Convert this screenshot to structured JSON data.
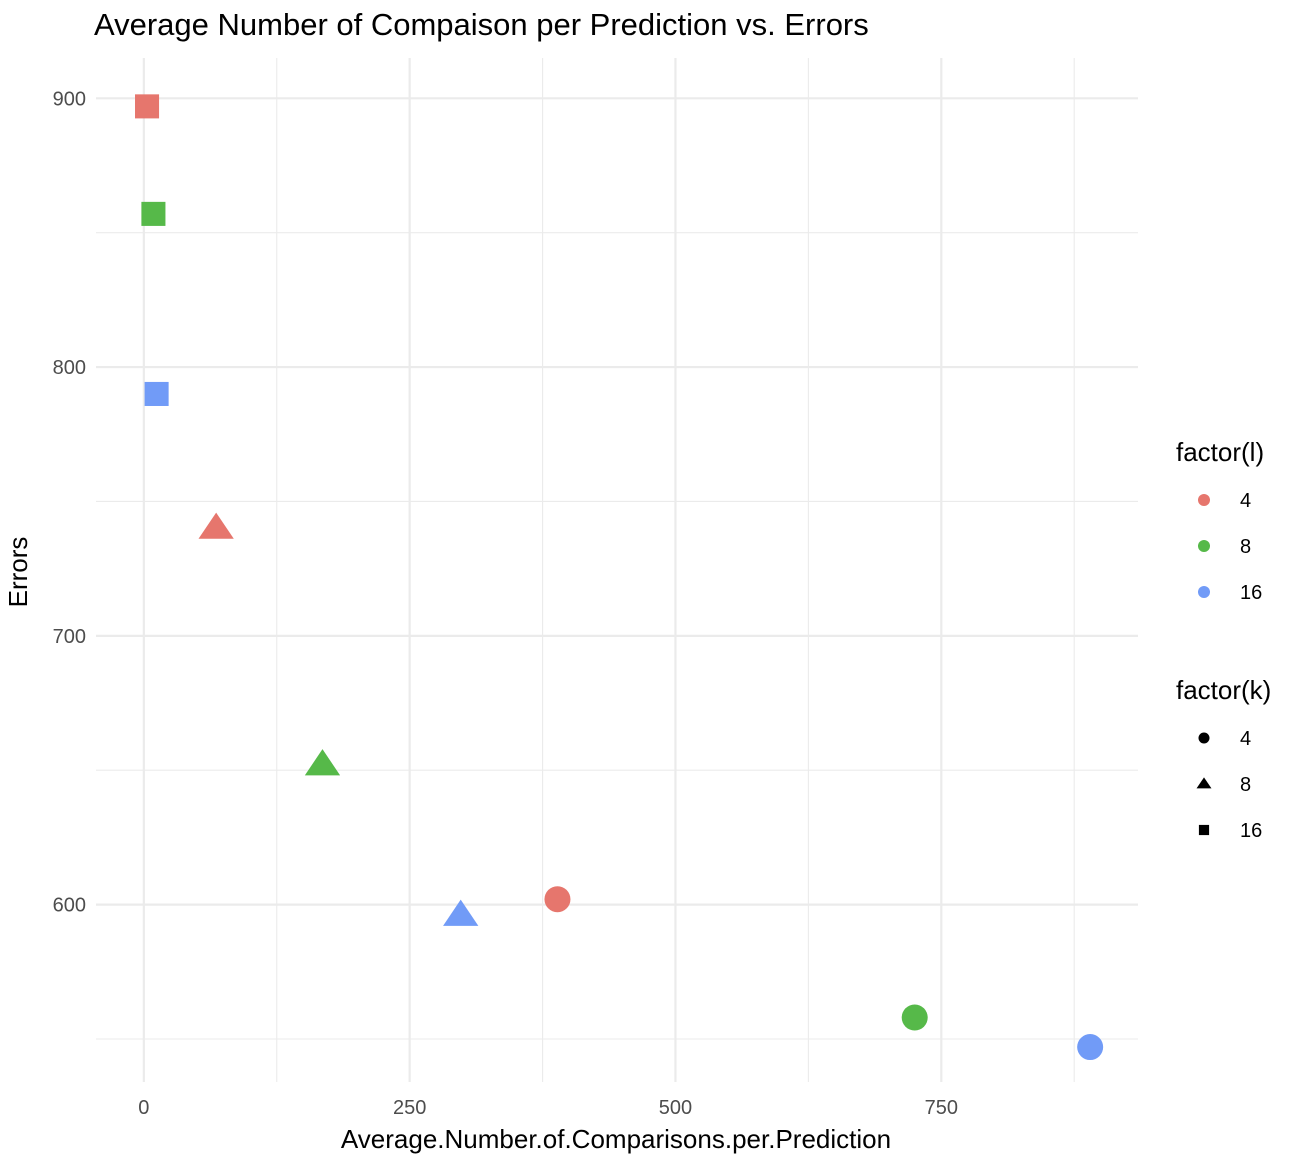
{
  "chart_data": {
    "type": "scatter",
    "title": "Average Number of Compaison per Prediction vs. Errors",
    "xlabel": "Average.Number.of.Comparisons.per.Prediction",
    "ylabel": "Errors",
    "xlim": [
      -45,
      935
    ],
    "ylim": [
      534,
      915
    ],
    "x_ticks": [
      0,
      250,
      500,
      750
    ],
    "x_tick_labels": [
      "0",
      "250",
      "500",
      "750"
    ],
    "y_ticks": [
      600,
      700,
      800,
      900
    ],
    "y_tick_labels": [
      "600",
      "700",
      "800",
      "900"
    ],
    "grid": true,
    "legend_position": "right",
    "legends": [
      {
        "title": "factor(l)",
        "aesthetic": "color",
        "entries": [
          {
            "label": "4",
            "color": "#e6766d"
          },
          {
            "label": "8",
            "color": "#56b949"
          },
          {
            "label": "16",
            "color": "#719bf7"
          }
        ]
      },
      {
        "title": "factor(k)",
        "aesthetic": "shape",
        "entries": [
          {
            "label": "4",
            "shape": "circle"
          },
          {
            "label": "8",
            "shape": "triangle"
          },
          {
            "label": "16",
            "shape": "square"
          }
        ]
      }
    ],
    "points": [
      {
        "l": "4",
        "k": "16",
        "x": 3,
        "y": 897
      },
      {
        "l": "8",
        "k": "16",
        "x": 9,
        "y": 857
      },
      {
        "l": "16",
        "k": "16",
        "x": 12,
        "y": 790
      },
      {
        "l": "4",
        "k": "8",
        "x": 68,
        "y": 740
      },
      {
        "l": "8",
        "k": "8",
        "x": 168,
        "y": 652
      },
      {
        "l": "16",
        "k": "8",
        "x": 298,
        "y": 596
      },
      {
        "l": "4",
        "k": "4",
        "x": 389,
        "y": 602
      },
      {
        "l": "8",
        "k": "4",
        "x": 725,
        "y": 558
      },
      {
        "l": "16",
        "k": "4",
        "x": 890,
        "y": 547
      }
    ]
  }
}
